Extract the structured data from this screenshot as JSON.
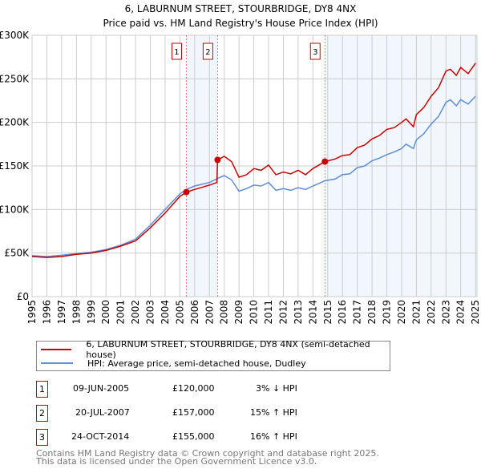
{
  "chart_data": {
    "type": "line",
    "title": "6, LABURNUM STREET, STOURBRIDGE, DY8 4NX",
    "subtitle": "Price paid vs. HM Land Registry's House Price Index (HPI)",
    "xlim": [
      1995,
      2025.1
    ],
    "ylim": [
      0,
      300000
    ],
    "grid": true,
    "y_ticks": [
      {
        "v": 0,
        "label": "£0"
      },
      {
        "v": 50000,
        "label": "£50K"
      },
      {
        "v": 100000,
        "label": "£100K"
      },
      {
        "v": 150000,
        "label": "£150K"
      },
      {
        "v": 200000,
        "label": "£200K"
      },
      {
        "v": 250000,
        "label": "£250K"
      },
      {
        "v": 300000,
        "label": "£300K"
      }
    ],
    "x_ticks": [
      "1995",
      "1996",
      "1997",
      "1998",
      "1999",
      "2000",
      "2001",
      "2002",
      "2003",
      "2004",
      "2005",
      "2006",
      "2007",
      "2008",
      "2009",
      "2010",
      "2011",
      "2012",
      "2013",
      "2014",
      "2015",
      "2016",
      "2017",
      "2018",
      "2019",
      "2020",
      "2021",
      "2022",
      "2023",
      "2024",
      "2025"
    ],
    "series": [
      {
        "name": "6, LABURNUM STREET, STOURBRIDGE, DY8 4NX (semi-detached house)",
        "color": "#cc0000",
        "x": [
          1995,
          1996,
          1997,
          1998,
          1999,
          2000,
          2001,
          2002,
          2003,
          2004,
          2005,
          2005.44,
          2006,
          2007,
          2007.5,
          2007.55,
          2008,
          2008.5,
          2009,
          2009.5,
          2010,
          2010.5,
          2011,
          2011.5,
          2012,
          2012.5,
          2013,
          2013.5,
          2014,
          2014.81,
          2015.5,
          2016,
          2016.5,
          2017,
          2017.5,
          2018,
          2018.5,
          2019,
          2019.5,
          2020,
          2020.3,
          2020.8,
          2021,
          2021.5,
          2022,
          2022.5,
          2023,
          2023.3,
          2023.7,
          2024,
          2024.5,
          2025
        ],
        "y": [
          46000,
          45000,
          46000,
          48500,
          50000,
          53000,
          58000,
          64000,
          79000,
          96000,
          115000,
          120000,
          123000,
          128000,
          131000,
          157000,
          161000,
          155000,
          137000,
          140000,
          147000,
          145000,
          151000,
          140000,
          143000,
          141000,
          145000,
          140000,
          147000,
          155000,
          158000,
          162000,
          163000,
          171000,
          174000,
          181000,
          185000,
          192000,
          194000,
          200000,
          204000,
          195000,
          209000,
          217000,
          230000,
          240000,
          259000,
          261000,
          254000,
          263000,
          256000,
          268000
        ]
      },
      {
        "name": "HPI: Average price, semi-detached house, Dudley",
        "color": "#5b8ed6",
        "x": [
          1995,
          1996,
          1997,
          1998,
          1999,
          2000,
          2001,
          2002,
          2003,
          2004,
          2005,
          2005.44,
          2006,
          2007,
          2007.6,
          2008,
          2008.5,
          2009,
          2009.5,
          2010,
          2010.5,
          2011,
          2011.5,
          2012,
          2012.5,
          2013,
          2013.5,
          2014,
          2014.81,
          2015.5,
          2016,
          2016.5,
          2017,
          2017.5,
          2018,
          2018.5,
          2019,
          2019.5,
          2020,
          2020.3,
          2020.8,
          2021,
          2021.5,
          2022,
          2022.5,
          2023,
          2023.3,
          2023.7,
          2024,
          2024.5,
          2025
        ],
        "y": [
          47000,
          46000,
          47500,
          49500,
          51000,
          54000,
          59000,
          66000,
          82000,
          100000,
          118000,
          123000,
          127000,
          131000,
          136000,
          139000,
          134000,
          121000,
          124000,
          128000,
          127000,
          131000,
          122000,
          124000,
          122000,
          125000,
          123000,
          127000,
          133000,
          135000,
          140000,
          141000,
          148000,
          150000,
          156000,
          159000,
          163000,
          166000,
          170000,
          175000,
          170000,
          180000,
          187000,
          198000,
          207000,
          223000,
          226000,
          219000,
          226000,
          221000,
          230000
        ]
      }
    ],
    "sales": [
      {
        "n": "1",
        "x": 2005.44,
        "date": "09-JUN-2005",
        "price": "£120,000",
        "price_v": 120000,
        "hpi": "3% ↓ HPI"
      },
      {
        "n": "2",
        "x": 2007.55,
        "date": "20-JUL-2007",
        "price": "£157,000",
        "price_v": 157000,
        "hpi": "15% ↑ HPI"
      },
      {
        "n": "3",
        "x": 2014.81,
        "date": "24-OCT-2014",
        "price": "£155,000",
        "price_v": 155000,
        "hpi": "16% ↑ HPI"
      }
    ],
    "shaded_ranges": [
      [
        2005.44,
        2007.55
      ],
      [
        2014.81,
        2025.1
      ]
    ]
  },
  "footer": {
    "line1": "Contains HM Land Registry data © Crown copyright and database right 2025.",
    "line2": "This data is licensed under the Open Government Licence v3.0."
  }
}
